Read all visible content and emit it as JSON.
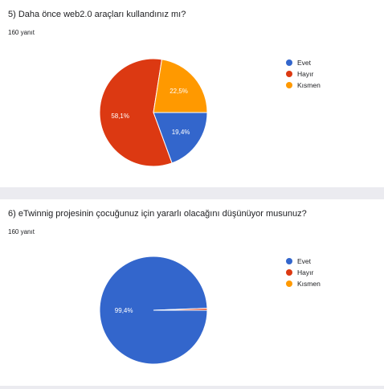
{
  "questions": [
    {
      "title": "5) Daha önce web2.0 araçları kullandınız mı?",
      "responses": "160 yanıt"
    },
    {
      "title": "6) eTwinnig projesinin çocuğunuz için yararlı olacağını düşünüyor musunuz?",
      "responses": "160 yanıt"
    }
  ],
  "chart_data": [
    {
      "type": "pie",
      "categories": [
        "Evet",
        "Hayır",
        "Kısmen"
      ],
      "values": [
        19.4,
        58.1,
        22.5
      ],
      "labels": [
        "19,4%",
        "58,1%",
        "22,5%"
      ],
      "colors": [
        "#3366cc",
        "#dc3912",
        "#ff9900"
      ],
      "legend": "right"
    },
    {
      "type": "pie",
      "categories": [
        "Evet",
        "Hayır",
        "Kısmen"
      ],
      "values": [
        99.4,
        0.6,
        0.0
      ],
      "labels": [
        "99,4%",
        "",
        ""
      ],
      "colors": [
        "#3366cc",
        "#dc3912",
        "#ff9900"
      ],
      "legend": "right"
    }
  ]
}
